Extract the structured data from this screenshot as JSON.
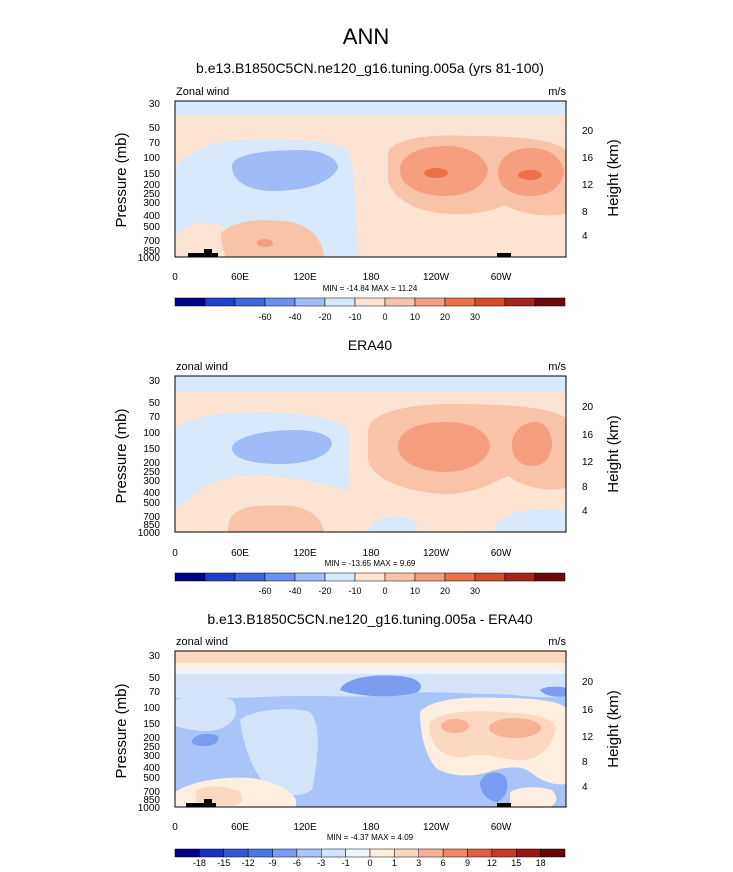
{
  "main_title": "ANN",
  "colors": {
    "panel_scale": [
      "#00008b",
      "#1f3fc8",
      "#3f66dc",
      "#6b8ff0",
      "#9fbcf8",
      "#d7e9fb",
      "#fde3d2",
      "#f8c3a7",
      "#f59f7f",
      "#ec7148",
      "#d64b2a",
      "#a5231a",
      "#6b0a0a"
    ],
    "diff_scale": [
      "#00008b",
      "#1a30c0",
      "#3356d6",
      "#4c78e6",
      "#7a9df2",
      "#a8c4f8",
      "#d3e4fb",
      "#eef4fd",
      "#fdeedf",
      "#fbd8bf",
      "#f6b292",
      "#ef8a62",
      "#e1603e",
      "#c63a22",
      "#9c1616",
      "#650808"
    ]
  },
  "charts": [
    {
      "title": "b.e13.B1850C5CN.ne120_g16.tuning.005a (yrs 81-100)",
      "left_label": "Zonal wind",
      "right_label": "m/s",
      "stats": "MIN = -14.84  MAX =  11.24",
      "colorbar_labels": [
        "-60",
        "-40",
        "-20",
        "-10",
        "0",
        "10",
        "20",
        "30"
      ]
    },
    {
      "title": "ERA40",
      "left_label": "zonal wind",
      "right_label": "m/s",
      "stats": "MIN = -13.65  MAX =   9.69",
      "colorbar_labels": [
        "-60",
        "-40",
        "-20",
        "-10",
        "0",
        "10",
        "20",
        "30"
      ]
    },
    {
      "title": "b.e13.B1850C5CN.ne120_g16.tuning.005a - ERA40",
      "left_label": "zonal wind",
      "right_label": "m/s",
      "stats": "MIN =  -4.37  MAX =   4.09",
      "colorbar_labels": [
        "-18",
        "-15",
        "-12",
        "-9",
        "-6",
        "-3",
        "-1",
        "0",
        "1",
        "3",
        "6",
        "9",
        "12",
        "15",
        "18"
      ]
    }
  ],
  "chart_data": [
    {
      "type": "heatmap",
      "title": "b.e13.B1850C5CN.ne120_g16.tuning.005a (yrs 81-100)",
      "xlabel": "",
      "ylabel": "Pressure (mb)",
      "y2label": "Height (km)",
      "x_ticks": [
        "0",
        "60E",
        "120E",
        "180",
        "120W",
        "60W"
      ],
      "y_ticks": [
        "30",
        "50",
        "70",
        "100",
        "150",
        "200",
        "250",
        "300",
        "400",
        "500",
        "700",
        "850",
        "1000"
      ],
      "y2_ticks": [
        "20",
        "16",
        "12",
        "8",
        "4"
      ],
      "ylim": [
        1000,
        30
      ],
      "y_scale": "log",
      "contour_levels": [
        -60,
        -40,
        -20,
        -10,
        0,
        10,
        20,
        30
      ],
      "min": -14.84,
      "max": 11.24
    },
    {
      "type": "heatmap",
      "title": "ERA40",
      "xlabel": "",
      "ylabel": "Pressure (mb)",
      "y2label": "Height (km)",
      "x_ticks": [
        "0",
        "60E",
        "120E",
        "180",
        "120W",
        "60W"
      ],
      "y_ticks": [
        "30",
        "50",
        "70",
        "100",
        "150",
        "200",
        "250",
        "300",
        "400",
        "500",
        "700",
        "850",
        "1000"
      ],
      "y2_ticks": [
        "20",
        "16",
        "12",
        "8",
        "4"
      ],
      "ylim": [
        1000,
        30
      ],
      "y_scale": "log",
      "contour_levels": [
        -60,
        -40,
        -20,
        -10,
        0,
        10,
        20,
        30
      ],
      "min": -13.65,
      "max": 9.69
    },
    {
      "type": "heatmap",
      "title": "b.e13.B1850C5CN.ne120_g16.tuning.005a - ERA40",
      "xlabel": "",
      "ylabel": "Pressure (mb)",
      "y2label": "Height (km)",
      "x_ticks": [
        "0",
        "60E",
        "120E",
        "180",
        "120W",
        "60W"
      ],
      "y_ticks": [
        "30",
        "50",
        "70",
        "100",
        "150",
        "200",
        "250",
        "300",
        "400",
        "500",
        "700",
        "850",
        "1000"
      ],
      "y2_ticks": [
        "20",
        "16",
        "12",
        "8",
        "4"
      ],
      "ylim": [
        1000,
        30
      ],
      "y_scale": "log",
      "contour_levels": [
        -18,
        -15,
        -12,
        -9,
        -6,
        -3,
        -1,
        0,
        1,
        3,
        6,
        9,
        12,
        15,
        18
      ],
      "min": -4.37,
      "max": 4.09
    }
  ]
}
